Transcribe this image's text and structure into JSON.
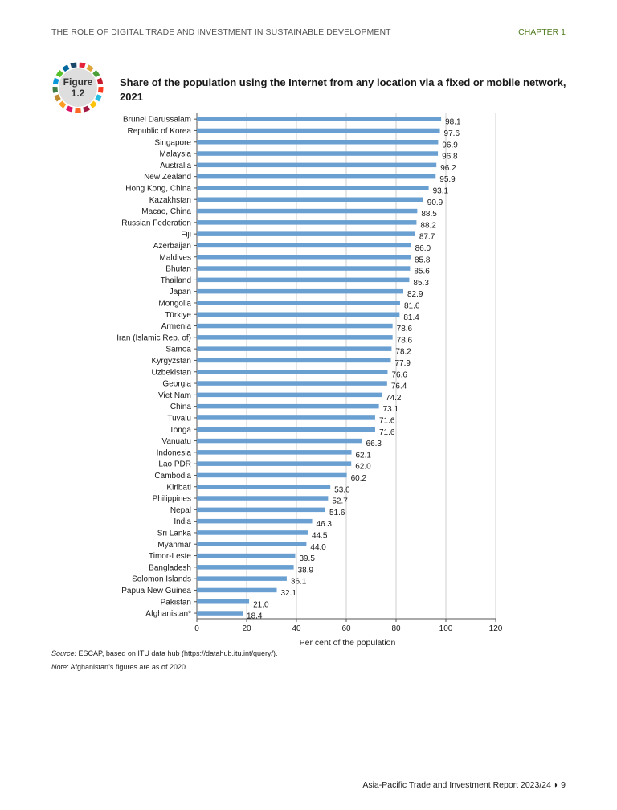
{
  "header": {
    "left": "THE ROLE OF DIGITAL TRADE AND INVESTMENT IN SUSTAINABLE DEVELOPMENT",
    "right": "CHAPTER 1"
  },
  "figure": {
    "word": "Figure",
    "number": "1.2",
    "title": "Share of the population using the Internet from any location via a fixed or mobile network, 2021"
  },
  "colors": {
    "bar": "#6a9fd1",
    "grid": "#cfcfcf",
    "axis": "#555555",
    "ring": [
      "#e5243b",
      "#dda63a",
      "#4c9f38",
      "#c5192d",
      "#ff3a21",
      "#26bde2",
      "#fcc30b",
      "#a21942",
      "#fd6925",
      "#dd1367",
      "#fd9d24",
      "#bf8b2e",
      "#3f7e44",
      "#0a97d9",
      "#56c02b",
      "#00689d",
      "#19486a"
    ]
  },
  "chart_data": {
    "type": "bar",
    "orientation": "horizontal",
    "title": "Share of the population using the Internet from any location via a fixed or mobile network, 2021",
    "xlabel": "Per cent of the population",
    "ylabel": "",
    "xlim": [
      0,
      120
    ],
    "xticks": [
      0,
      20,
      40,
      60,
      80,
      100,
      120
    ],
    "grid": true,
    "categories": [
      "Brunei Darussalam",
      "Republic of Korea",
      "Singapore",
      "Malaysia",
      "Australia",
      "New Zealand",
      "Hong Kong, China",
      "Kazakhstan",
      "Macao, China",
      "Russian Federation",
      "Fiji",
      "Azerbaijan",
      "Maldives",
      "Bhutan",
      "Thailand",
      "Japan",
      "Mongolia",
      "Türkiye",
      "Armenia",
      "Iran (Islamic Rep. of)",
      "Samoa",
      "Kyrgyzstan",
      "Uzbekistan",
      "Georgia",
      "Viet Nam",
      "China",
      "Tuvalu",
      "Tonga",
      "Vanuatu",
      "Indonesia",
      "Lao PDR",
      "Cambodia",
      "Kiribati",
      "Philippines",
      "Nepal",
      "India",
      "Sri Lanka",
      "Myanmar",
      "Timor-Leste",
      "Bangladesh",
      "Solomon Islands",
      "Papua New Guinea",
      "Pakistan",
      "Afghanistan*"
    ],
    "values": [
      98.1,
      97.6,
      96.9,
      96.8,
      96.2,
      95.9,
      93.1,
      90.9,
      88.5,
      88.2,
      87.7,
      86.0,
      85.8,
      85.6,
      85.3,
      82.9,
      81.6,
      81.4,
      78.6,
      78.6,
      78.2,
      77.9,
      76.6,
      76.4,
      74.2,
      73.1,
      71.6,
      71.6,
      66.3,
      62.1,
      62.0,
      60.2,
      53.6,
      52.7,
      51.6,
      46.3,
      44.5,
      44.0,
      39.5,
      38.9,
      36.1,
      32.1,
      21.0,
      18.4
    ],
    "value_labels": [
      "98.1",
      "97.6",
      "96.9",
      "96.8",
      "96.2",
      "95.9",
      "93.1",
      "90.9",
      "88.5",
      "88.2",
      "87.7",
      "86.0",
      "85.8",
      "85.6",
      "85.3",
      "82.9",
      "81.6",
      "81.4",
      "78.6",
      "78.6",
      "78.2",
      "77.9",
      "76.6",
      "76.4",
      "74.2",
      "73.1",
      "71.6",
      "71.6",
      "66.3",
      "62.1",
      "62.0",
      "60.2",
      "53.6",
      "52.7",
      "51.6",
      "46.3",
      "44.5",
      "44.0",
      "39.5",
      "38.9",
      "36.1",
      "32.1",
      "21.0",
      "18.4"
    ]
  },
  "source": {
    "label": "Source:",
    "text": "ESCAP, based on ITU data hub (https://datahub.itu.int/query/)."
  },
  "note": {
    "label": "Note:",
    "text": "Afghanistan’s figures are as of 2020."
  },
  "footer": {
    "text": "Asia-Pacific Trade and Investment Report 2023/24",
    "marker": "◗",
    "page": "9"
  }
}
